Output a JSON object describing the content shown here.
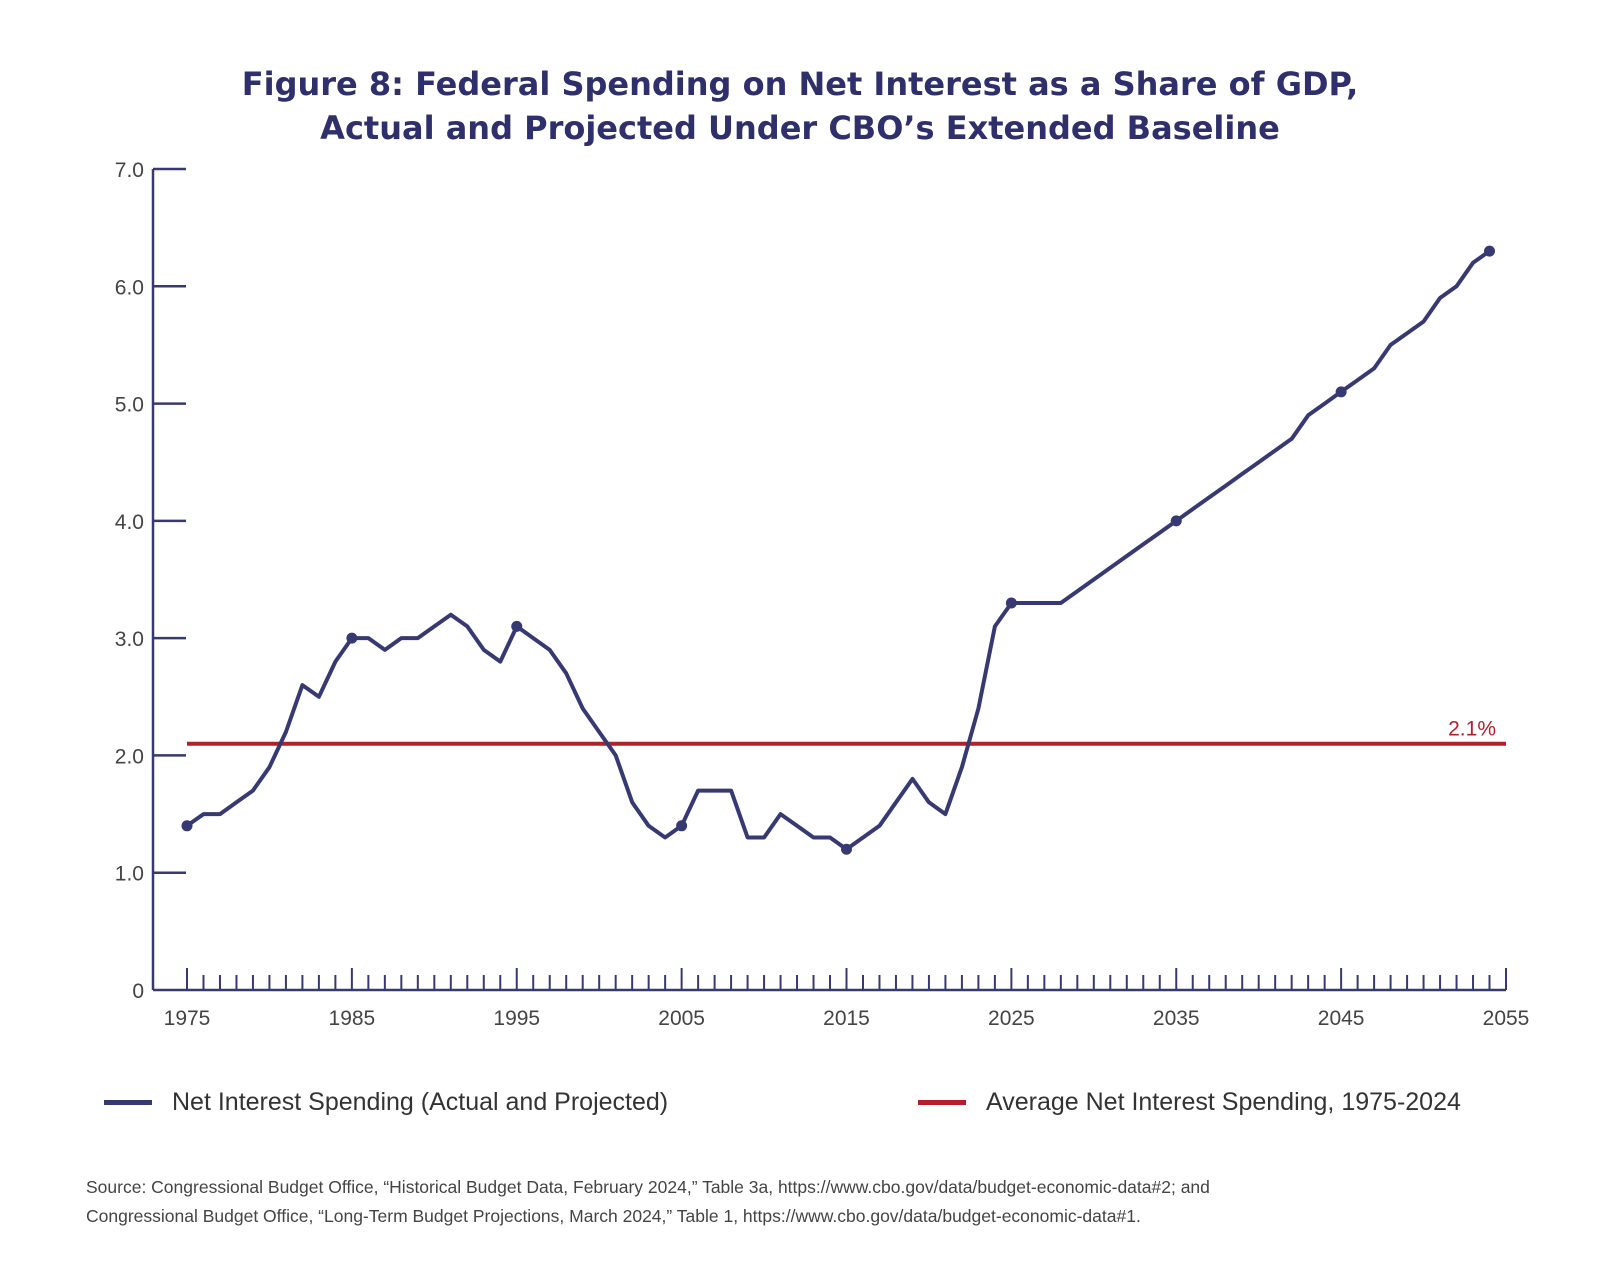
{
  "title_line1": "Figure 8: Federal Spending on Net Interest as a Share of GDP,",
  "title_line2": "Actual and Projected Under CBO’s Extended Baseline",
  "legend": {
    "series1": "Net Interest Spending (Actual and Projected)",
    "series2": "Average Net Interest Spending, 1975-2024"
  },
  "source_line1": "Source: Congressional Budget Office, “Historical Budget Data, February 2024,” Table 3a, https://www.cbo.gov/data/budget-economic-data#2; and",
  "source_line2": "Congressional Budget Office, “Long-Term Budget Projections, March 2024,” Table 1, https://www.cbo.gov/data/budget-economic-data#1.",
  "colors": {
    "series": "#373a72",
    "average": "#b3202c",
    "axis": "#373a72",
    "title": "#2e2f6b"
  },
  "chart_data": {
    "type": "line",
    "xlim": [
      1973,
      2055
    ],
    "ylim": [
      0,
      7
    ],
    "x_ticks": [
      1975,
      1985,
      1995,
      2005,
      2015,
      2025,
      2035,
      2045,
      2055
    ],
    "x_tick_labels": [
      "1975",
      "1985",
      "1995",
      "2005",
      "2015",
      "2025",
      "2035",
      "2045",
      "2055"
    ],
    "y_ticks": [
      0,
      1,
      2,
      3,
      4,
      5,
      6,
      7
    ],
    "y_tick_labels": [
      "0",
      "1.0",
      "2.0",
      "3.0",
      "4.0",
      "5.0",
      "6.0",
      "7.0"
    ],
    "minor_x_ticks": "every year",
    "grid": false,
    "legend_position": "bottom",
    "series": [
      {
        "name": "Net Interest Spending (Actual and Projected)",
        "color": "#373a72",
        "x": [
          1975,
          1976,
          1977,
          1978,
          1979,
          1980,
          1981,
          1982,
          1983,
          1984,
          1985,
          1986,
          1987,
          1988,
          1989,
          1990,
          1991,
          1992,
          1993,
          1994,
          1995,
          1996,
          1997,
          1998,
          1999,
          2000,
          2001,
          2002,
          2003,
          2004,
          2005,
          2006,
          2007,
          2008,
          2009,
          2010,
          2011,
          2012,
          2013,
          2014,
          2015,
          2016,
          2017,
          2018,
          2019,
          2020,
          2021,
          2022,
          2023,
          2024,
          2025,
          2026,
          2027,
          2028,
          2029,
          2030,
          2031,
          2032,
          2033,
          2034,
          2035,
          2036,
          2037,
          2038,
          2039,
          2040,
          2041,
          2042,
          2043,
          2044,
          2045,
          2046,
          2047,
          2048,
          2049,
          2050,
          2051,
          2052,
          2053,
          2054
        ],
        "values": [
          1.4,
          1.5,
          1.5,
          1.6,
          1.7,
          1.9,
          2.2,
          2.6,
          2.5,
          2.8,
          3.0,
          3.0,
          2.9,
          3.0,
          3.0,
          3.1,
          3.2,
          3.1,
          2.9,
          2.8,
          3.1,
          3.0,
          2.9,
          2.7,
          2.4,
          2.2,
          2.0,
          1.6,
          1.4,
          1.3,
          1.4,
          1.7,
          1.7,
          1.7,
          1.3,
          1.3,
          1.5,
          1.4,
          1.3,
          1.3,
          1.2,
          1.3,
          1.4,
          1.6,
          1.8,
          1.6,
          1.5,
          1.9,
          2.4,
          3.1,
          3.3,
          3.3,
          3.3,
          3.3,
          3.4,
          3.5,
          3.6,
          3.7,
          3.8,
          3.9,
          4.0,
          4.1,
          4.2,
          4.3,
          4.4,
          4.5,
          4.6,
          4.7,
          4.9,
          5.0,
          5.1,
          5.2,
          5.3,
          5.5,
          5.6,
          5.7,
          5.9,
          6.0,
          6.2,
          6.3
        ],
        "markers_at": [
          1975,
          1985,
          1995,
          2005,
          2015,
          2025,
          2035,
          2045,
          2055
        ]
      },
      {
        "name": "Average Net Interest Spending, 1975-2024",
        "color": "#b3202c",
        "x": [
          1975,
          2055
        ],
        "values": [
          2.1,
          2.1
        ],
        "label": "2.1%"
      }
    ]
  }
}
